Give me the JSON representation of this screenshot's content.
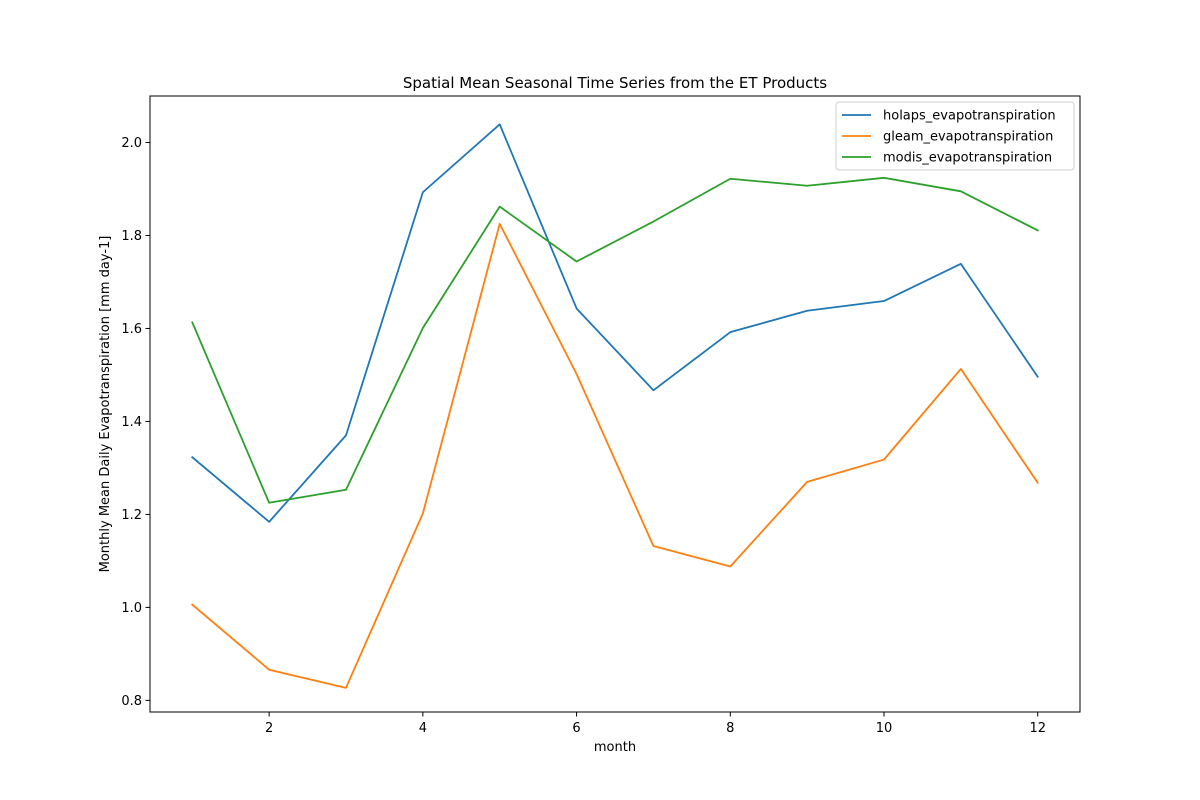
{
  "chart_data": {
    "type": "line",
    "title": "Spatial Mean Seasonal Time Series from the ET Products",
    "xlabel": "month",
    "ylabel": "Monthly Mean Daily Evapotranspiration [mm day-1]",
    "x": [
      1,
      2,
      3,
      4,
      5,
      6,
      7,
      8,
      9,
      10,
      11,
      12
    ],
    "xlim": [
      0.45,
      12.55
    ],
    "ylim": [
      0.775,
      2.1
    ],
    "xticks": [
      2,
      4,
      6,
      8,
      10,
      12
    ],
    "xtick_labels": [
      "2",
      "4",
      "6",
      "8",
      "10",
      "12"
    ],
    "yticks": [
      0.8,
      1.0,
      1.2,
      1.4,
      1.6,
      1.8,
      2.0
    ],
    "ytick_labels": [
      "0.8",
      "1.0",
      "1.2",
      "1.4",
      "1.6",
      "1.8",
      "2.0"
    ],
    "grid": false,
    "legend_position": "top-right",
    "series": [
      {
        "name": "holaps_evapotranspiration",
        "color": "#1f77b4",
        "values": [
          1.323,
          1.184,
          1.37,
          1.893,
          2.039,
          1.643,
          1.467,
          1.592,
          1.638,
          1.659,
          1.739,
          1.496
        ]
      },
      {
        "name": "gleam_evapotranspiration",
        "color": "#ff7f0e",
        "values": [
          1.006,
          0.866,
          0.827,
          1.202,
          1.825,
          1.502,
          1.132,
          1.088,
          1.27,
          1.318,
          1.513,
          1.268
        ]
      },
      {
        "name": "modis_evapotranspiration",
        "color": "#2ca02c",
        "values": [
          1.613,
          1.225,
          1.253,
          1.601,
          1.862,
          1.744,
          1.83,
          1.922,
          1.907,
          1.924,
          1.895,
          1.811
        ]
      }
    ]
  }
}
